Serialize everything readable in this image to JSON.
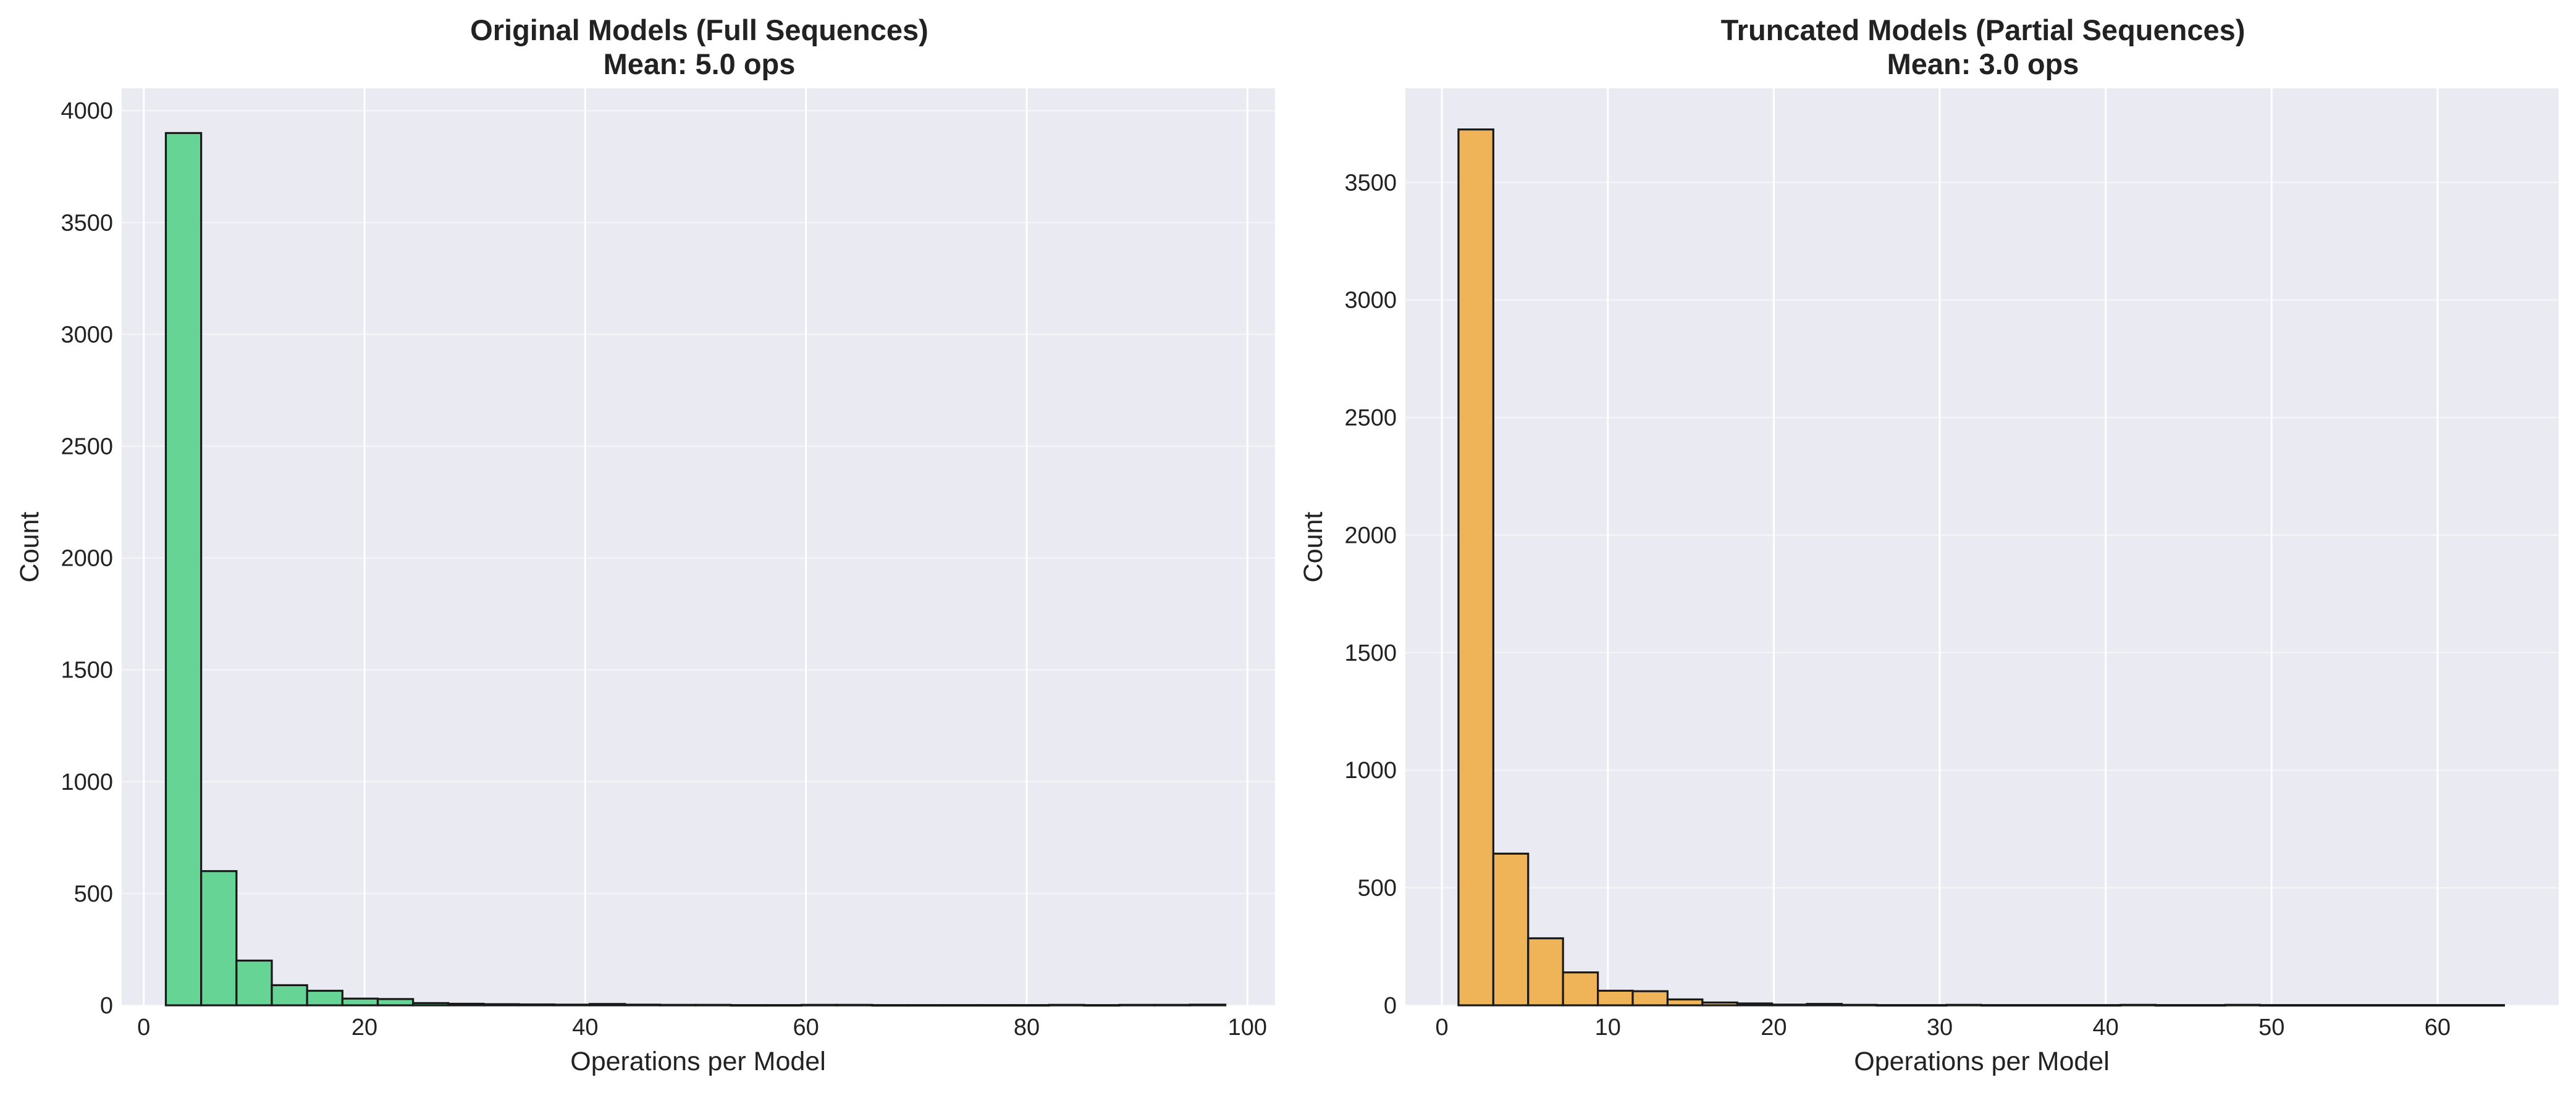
{
  "charts": [
    {
      "id": "left",
      "title_line1": "Original Models (Full Sequences)",
      "title_line2": "Mean: 5.0 ops",
      "xlabel": "Operations per Model",
      "ylabel": "Count",
      "bar_color": "#66d495",
      "xticks": [
        0,
        20,
        40,
        60,
        80,
        100
      ],
      "yticks": [
        0,
        500,
        1000,
        1500,
        2000,
        2500,
        3000,
        3500,
        4000
      ]
    },
    {
      "id": "right",
      "title_line1": "Truncated Models (Partial Sequences)",
      "title_line2": "Mean: 3.0 ops",
      "xlabel": "Operations per Model",
      "ylabel": "Count",
      "bar_color": "#efb458",
      "xticks": [
        0,
        10,
        20,
        30,
        40,
        50,
        60
      ],
      "yticks": [
        0,
        500,
        1000,
        1500,
        2000,
        2500,
        3000,
        3500
      ]
    }
  ],
  "chart_data": [
    {
      "type": "bar",
      "title": "Original Models (Full Sequences)\nMean: 5.0 ops",
      "xlabel": "Operations per Model",
      "ylabel": "Count",
      "xlim": [
        -2,
        102.5
      ],
      "ylim": [
        0,
        4100
      ],
      "grid": true,
      "bin_width": 3.2,
      "bins": [
        {
          "start": 2.0,
          "count": 3900
        },
        {
          "start": 5.2,
          "count": 600
        },
        {
          "start": 8.4,
          "count": 200
        },
        {
          "start": 11.6,
          "count": 90
        },
        {
          "start": 14.8,
          "count": 65
        },
        {
          "start": 18.0,
          "count": 30
        },
        {
          "start": 21.2,
          "count": 28
        },
        {
          "start": 24.4,
          "count": 10
        },
        {
          "start": 27.6,
          "count": 7
        },
        {
          "start": 30.8,
          "count": 5
        },
        {
          "start": 34.0,
          "count": 4
        },
        {
          "start": 37.2,
          "count": 3
        },
        {
          "start": 40.4,
          "count": 6
        },
        {
          "start": 43.6,
          "count": 3
        },
        {
          "start": 46.8,
          "count": 2
        },
        {
          "start": 50.0,
          "count": 2
        },
        {
          "start": 53.2,
          "count": 1
        },
        {
          "start": 56.4,
          "count": 1
        },
        {
          "start": 59.6,
          "count": 2
        },
        {
          "start": 62.8,
          "count": 2
        },
        {
          "start": 66.0,
          "count": 1
        },
        {
          "start": 69.2,
          "count": 1
        },
        {
          "start": 72.4,
          "count": 1
        },
        {
          "start": 75.6,
          "count": 1
        },
        {
          "start": 78.8,
          "count": 1
        },
        {
          "start": 82.0,
          "count": 2
        },
        {
          "start": 85.2,
          "count": 1
        },
        {
          "start": 88.4,
          "count": 2
        },
        {
          "start": 91.6,
          "count": 2
        },
        {
          "start": 94.8,
          "count": 3
        }
      ]
    },
    {
      "type": "bar",
      "title": "Truncated Models (Partial Sequences)\nMean: 3.0 ops",
      "xlabel": "Operations per Model",
      "ylabel": "Count",
      "xlim": [
        -2.2,
        67.3
      ],
      "ylim": [
        0,
        3900
      ],
      "grid": true,
      "bin_width": 2.1,
      "bins": [
        {
          "start": 1.0,
          "count": 3725
        },
        {
          "start": 3.1,
          "count": 645
        },
        {
          "start": 5.2,
          "count": 285
        },
        {
          "start": 7.3,
          "count": 140
        },
        {
          "start": 9.4,
          "count": 62
        },
        {
          "start": 11.5,
          "count": 60
        },
        {
          "start": 13.6,
          "count": 25
        },
        {
          "start": 15.7,
          "count": 12
        },
        {
          "start": 17.8,
          "count": 8
        },
        {
          "start": 19.9,
          "count": 3
        },
        {
          "start": 22.0,
          "count": 6
        },
        {
          "start": 24.1,
          "count": 2
        },
        {
          "start": 26.2,
          "count": 1
        },
        {
          "start": 28.3,
          "count": 1
        },
        {
          "start": 30.4,
          "count": 2
        },
        {
          "start": 32.5,
          "count": 1
        },
        {
          "start": 34.6,
          "count": 1
        },
        {
          "start": 36.7,
          "count": 1
        },
        {
          "start": 38.8,
          "count": 1
        },
        {
          "start": 40.9,
          "count": 2
        },
        {
          "start": 43.0,
          "count": 1
        },
        {
          "start": 45.1,
          "count": 1
        },
        {
          "start": 47.2,
          "count": 2
        },
        {
          "start": 49.3,
          "count": 1
        },
        {
          "start": 51.4,
          "count": 1
        },
        {
          "start": 53.5,
          "count": 1
        },
        {
          "start": 55.6,
          "count": 1
        },
        {
          "start": 57.7,
          "count": 1
        },
        {
          "start": 59.8,
          "count": 1
        },
        {
          "start": 61.9,
          "count": 1
        }
      ]
    }
  ]
}
